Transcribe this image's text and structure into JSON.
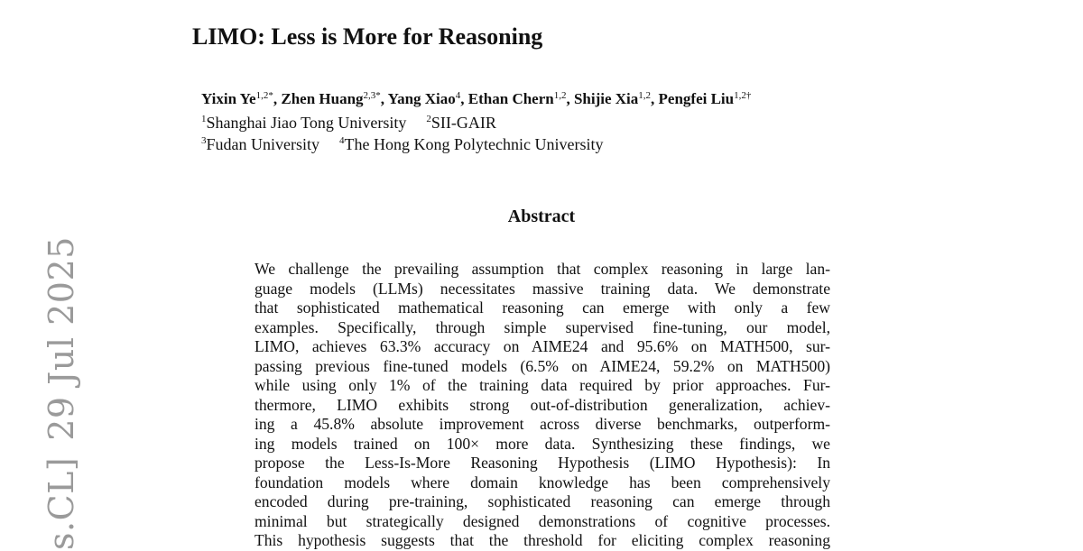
{
  "side_stamp": {
    "category": "s.CL]",
    "date": "29 Jul 2025"
  },
  "title": "LIMO: Less is More for Reasoning",
  "authors": [
    {
      "name": "Yixin Ye",
      "sup": "1,2*",
      "sep": ","
    },
    {
      "name": "Zhen Huang",
      "sup": "2,3*",
      "sep": ","
    },
    {
      "name": "Yang Xiao",
      "sup": "4",
      "sep": ","
    },
    {
      "name": "Ethan Chern",
      "sup": "1,2",
      "sep": ","
    },
    {
      "name": "Shijie Xia",
      "sup": "1,2",
      "sep": ","
    },
    {
      "name": "Pengfei Liu",
      "sup": "1,2†",
      "sep": ""
    }
  ],
  "affiliations": [
    {
      "num": "1",
      "name": "Shanghai Jiao Tong University"
    },
    {
      "num": "2",
      "name": "SII-GAIR"
    },
    {
      "num": "3",
      "name": "Fudan University"
    },
    {
      "num": "4",
      "name": "The Hong Kong Polytechnic University"
    }
  ],
  "abstract": {
    "heading": "Abstract",
    "lines": [
      "We challenge the prevailing assumption that complex reasoning in large lan-",
      "guage models (LLMs) necessitates massive training data. We demonstrate",
      "that sophisticated mathematical reasoning can emerge with only a few",
      "examples. Specifically, through simple supervised fine-tuning, our model,",
      "LIMO, achieves 63.3% accuracy on AIME24 and 95.6% on MATH500, sur-",
      "passing previous fine-tuned models (6.5% on AIME24, 59.2% on MATH500)",
      "while using only 1% of the training data required by prior approaches. Fur-",
      "thermore, LIMO exhibits strong out-of-distribution generalization, achiev-",
      "ing a 45.8% absolute improvement across diverse benchmarks, outperform-",
      "ing models trained on 100× more data. Synthesizing these findings, we",
      "propose the Less-Is-More Reasoning Hypothesis (LIMO Hypothesis): In",
      "foundation models where domain knowledge has been comprehensively",
      "encoded during pre-training, sophisticated reasoning can emerge through",
      "minimal but strategically designed demonstrations of cognitive processes.",
      "This hypothesis suggests that the threshold for eliciting complex reasoning"
    ]
  }
}
